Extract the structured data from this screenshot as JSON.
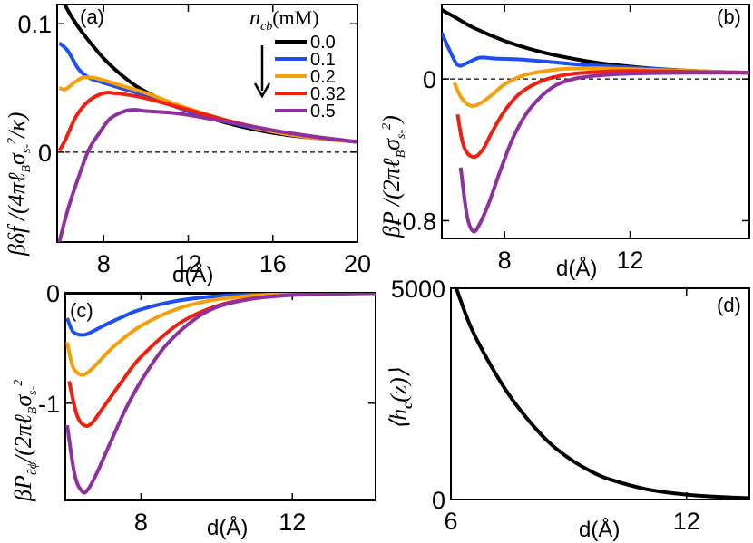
{
  "legend": {
    "title": "n",
    "title_sub": "cb",
    "title_unit": "(mM)",
    "entries": [
      "0.0",
      "0.1",
      "0.2",
      "0.32",
      "0.5"
    ]
  },
  "colors": [
    "#000000",
    "#1f4ff0",
    "#f5a00a",
    "#f02010",
    "#8e30a0"
  ],
  "chart_data": [
    {
      "type": "line",
      "panel_label": "(a)",
      "xlabel": "d(Å)",
      "ylabel": "βδf /(4πℓ_B σ_s-² /κ)",
      "ylabel_parts": [
        "βδf /(4πℓ",
        "B",
        "σ",
        "s-",
        "2",
        "/κ)"
      ],
      "xlim": [
        5.8,
        20
      ],
      "ylim": [
        -0.07,
        0.115
      ],
      "xticks": [
        "8",
        "12",
        "16",
        "20"
      ],
      "xtick_values": [
        8,
        12,
        16,
        20
      ],
      "yticks": [
        "0",
        "0.1"
      ],
      "ytick_values": [
        0,
        0.1
      ],
      "zero_line": true,
      "series": [
        {
          "name": "0.0",
          "x": [
            5.9,
            6.5,
            7,
            8,
            9,
            10,
            12,
            14,
            16,
            18,
            20
          ],
          "y": [
            0.123,
            0.105,
            0.093,
            0.073,
            0.058,
            0.047,
            0.032,
            0.022,
            0.015,
            0.011,
            0.008
          ]
        },
        {
          "name": "0.1",
          "x": [
            5.9,
            6.3,
            6.8,
            7.3,
            8,
            9,
            10,
            12,
            14,
            16,
            18,
            20
          ],
          "y": [
            0.085,
            0.079,
            0.065,
            0.058,
            0.054,
            0.049,
            0.044,
            0.032,
            0.023,
            0.016,
            0.011,
            0.008
          ]
        },
        {
          "name": "0.2",
          "x": [
            5.9,
            6.2,
            6.6,
            7,
            7.5,
            8,
            9,
            10,
            12,
            14,
            16,
            18,
            20
          ],
          "y": [
            0.05,
            0.049,
            0.054,
            0.058,
            0.058,
            0.056,
            0.051,
            0.046,
            0.034,
            0.024,
            0.016,
            0.011,
            0.008
          ]
        },
        {
          "name": "0.32",
          "x": [
            5.9,
            6.2,
            6.7,
            7.3,
            8,
            8.5,
            9,
            10,
            12,
            14,
            16,
            18,
            20
          ],
          "y": [
            0.001,
            0.01,
            0.028,
            0.04,
            0.046,
            0.046,
            0.045,
            0.042,
            0.033,
            0.024,
            0.017,
            0.012,
            0.008
          ]
        },
        {
          "name": "0.5",
          "x": [
            5.9,
            6.3,
            6.8,
            7.3,
            7.8,
            8.3,
            9,
            9.5,
            10,
            11,
            12,
            14,
            16,
            18,
            20
          ],
          "y": [
            -0.07,
            -0.045,
            -0.02,
            0.002,
            0.015,
            0.026,
            0.032,
            0.033,
            0.032,
            0.031,
            0.029,
            0.023,
            0.017,
            0.012,
            0.008
          ]
        }
      ]
    },
    {
      "type": "line",
      "panel_label": "(b)",
      "xlabel": "d(Å)",
      "ylabel": "βP /(2πℓ_B σ_s-²)",
      "ylabel_parts": [
        "βP /(2πℓ",
        "B",
        "σ",
        "s-",
        "2",
        ")"
      ],
      "xlim": [
        6,
        15.8
      ],
      "ylim": [
        -0.9,
        0.42
      ],
      "xticks": [
        "8",
        "12"
      ],
      "xtick_values": [
        8,
        12
      ],
      "yticks": [
        "0",
        "-0.8"
      ],
      "ytick_values": [
        0,
        -0.8
      ],
      "zero_line": true,
      "series": [
        {
          "name": "0.0",
          "x": [
            6,
            6.5,
            7,
            8,
            9,
            10,
            11,
            12,
            13,
            14,
            15.8
          ],
          "y": [
            0.39,
            0.34,
            0.29,
            0.215,
            0.16,
            0.12,
            0.09,
            0.07,
            0.055,
            0.045,
            0.035
          ]
        },
        {
          "name": "0.1",
          "x": [
            6,
            6.2,
            6.5,
            6.8,
            7.2,
            7.7,
            8.5,
            9.5,
            10.5,
            12,
            14,
            15.8
          ],
          "y": [
            0.26,
            0.18,
            0.08,
            0.09,
            0.12,
            0.115,
            0.11,
            0.095,
            0.08,
            0.065,
            0.045,
            0.035
          ]
        },
        {
          "name": "0.2",
          "x": [
            6.4,
            6.6,
            6.9,
            7.2,
            7.6,
            8,
            8.6,
            9.3,
            10,
            11,
            12,
            14,
            15.8
          ],
          "y": [
            -0.02,
            -0.1,
            -0.15,
            -0.14,
            -0.09,
            -0.03,
            0.02,
            0.045,
            0.058,
            0.06,
            0.055,
            0.045,
            0.035
          ]
        },
        {
          "name": "0.32",
          "x": [
            6.5,
            6.7,
            7,
            7.3,
            7.6,
            8,
            8.5,
            9.2,
            10,
            11,
            12,
            14,
            15.8
          ],
          "y": [
            -0.2,
            -0.38,
            -0.44,
            -0.4,
            -0.3,
            -0.18,
            -0.08,
            -0.01,
            0.025,
            0.04,
            0.045,
            0.04,
            0.035
          ]
        },
        {
          "name": "0.5",
          "x": [
            6.6,
            6.8,
            7,
            7.2,
            7.5,
            7.9,
            8.3,
            8.8,
            9.5,
            10.2,
            11,
            12,
            14,
            15.8
          ],
          "y": [
            -0.5,
            -0.77,
            -0.86,
            -0.82,
            -0.7,
            -0.5,
            -0.32,
            -0.17,
            -0.05,
            0.0,
            0.02,
            0.03,
            0.035,
            0.035
          ]
        }
      ]
    },
    {
      "type": "line",
      "panel_label": "(c)",
      "xlabel": "d(Å)",
      "ylabel": "βP_∂ϕ /(2πℓ_B σ_s-²)",
      "ylabel_parts": [
        "βP",
        "∂ϕ",
        "/(2πℓ",
        "B",
        "σ",
        "s-",
        "2"
      ],
      "xlim": [
        6,
        14.2
      ],
      "ylim": [
        -1.88,
        0.0
      ],
      "xticks": [
        "8",
        "12"
      ],
      "xtick_values": [
        8,
        12
      ],
      "yticks": [
        "0",
        "-1"
      ],
      "ytick_values": [
        0,
        -1
      ],
      "zero_line": false,
      "series": [
        {
          "name": "0.0",
          "x": [
            6,
            8,
            10,
            12,
            14.2
          ],
          "y": [
            0,
            0,
            0,
            0,
            0
          ]
        },
        {
          "name": "0.1",
          "x": [
            6.05,
            6.2,
            6.4,
            6.6,
            7,
            7.5,
            8,
            9,
            10,
            11,
            12,
            14.2
          ],
          "y": [
            -0.23,
            -0.35,
            -0.38,
            -0.37,
            -0.3,
            -0.22,
            -0.15,
            -0.07,
            -0.03,
            -0.015,
            -0.008,
            -0.002
          ]
        },
        {
          "name": "0.2",
          "x": [
            6.05,
            6.2,
            6.4,
            6.6,
            6.9,
            7.3,
            8,
            9,
            10,
            11,
            12,
            14.2
          ],
          "y": [
            -0.45,
            -0.67,
            -0.74,
            -0.72,
            -0.62,
            -0.48,
            -0.3,
            -0.14,
            -0.06,
            -0.025,
            -0.01,
            -0.003
          ]
        },
        {
          "name": "0.32",
          "x": [
            6.1,
            6.3,
            6.5,
            6.7,
            7,
            7.5,
            8,
            9,
            10,
            11,
            12,
            13,
            14.2
          ],
          "y": [
            -0.8,
            -1.1,
            -1.2,
            -1.18,
            -1.04,
            -0.8,
            -0.58,
            -0.28,
            -0.12,
            -0.05,
            -0.02,
            -0.008,
            -0.003
          ]
        },
        {
          "name": "0.5",
          "x": [
            6.05,
            6.25,
            6.45,
            6.6,
            6.85,
            7.2,
            7.6,
            8,
            8.6,
            9.3,
            10,
            11,
            12,
            13,
            14.2
          ],
          "y": [
            -1.2,
            -1.65,
            -1.8,
            -1.78,
            -1.62,
            -1.35,
            -1.05,
            -0.8,
            -0.5,
            -0.27,
            -0.13,
            -0.05,
            -0.02,
            -0.008,
            -0.003
          ]
        }
      ]
    },
    {
      "type": "line",
      "panel_label": "(d)",
      "xlabel": "d(Å)",
      "ylabel": "⟨h_c(z)⟩",
      "ylabel_parts": [
        "⟨h",
        "c",
        "(z)⟩"
      ],
      "xlim": [
        6,
        13.6
      ],
      "ylim": [
        0,
        5000
      ],
      "xticks": [
        "6",
        "12"
      ],
      "xtick_values": [
        6,
        12
      ],
      "yticks": [
        "0",
        "5000"
      ],
      "ytick_values": [
        0,
        5000
      ],
      "zero_line": false,
      "series": [
        {
          "name": "h_c",
          "x": [
            6.1,
            6.5,
            7,
            7.5,
            8,
            8.5,
            9,
            9.5,
            10,
            11,
            12,
            13,
            13.6
          ],
          "y": [
            5100,
            4100,
            3200,
            2450,
            1850,
            1350,
            980,
            700,
            490,
            240,
            115,
            55,
            35
          ]
        }
      ]
    }
  ]
}
